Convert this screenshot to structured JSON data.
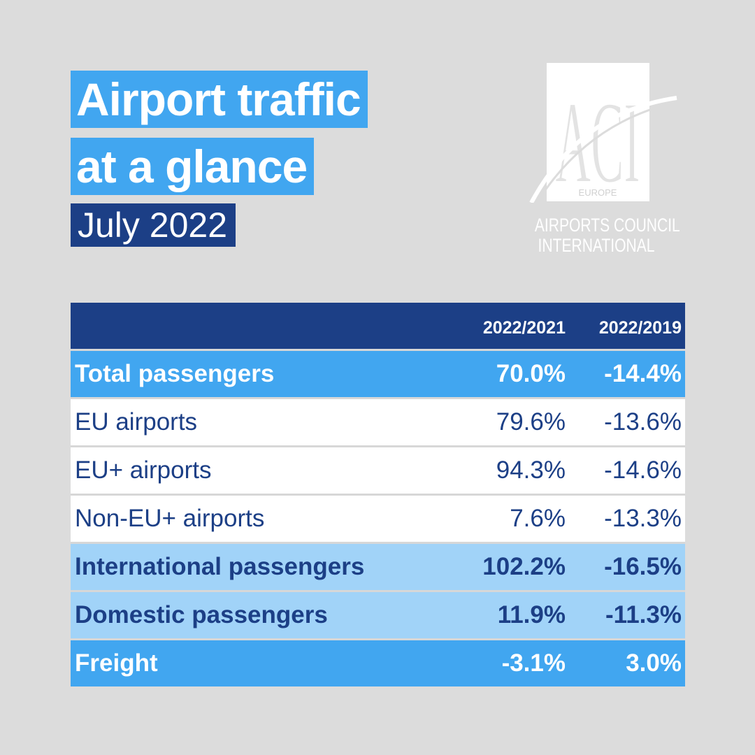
{
  "title": {
    "line1": "Airport traffic",
    "line2": "at a glance",
    "period": "July 2022"
  },
  "logo": {
    "monogram": "ACI",
    "region": "EUROPE",
    "name_line1": "AIRPORTS COUNCIL",
    "name_line2": "INTERNATIONAL"
  },
  "colors": {
    "background": "#dcdcdc",
    "accent_blue": "#41a6f0",
    "navy": "#1c3f86",
    "light_blue": "#a1d3f8"
  },
  "chart_data": {
    "type": "table",
    "columns": [
      "",
      "2022/2021",
      "2022/2019"
    ],
    "rows": [
      {
        "label": "Total passengers",
        "values": [
          "70.0%",
          "-14.4%"
        ],
        "style": "total"
      },
      {
        "label": "EU airports",
        "values": [
          "79.6%",
          "-13.6%"
        ],
        "style": "sub"
      },
      {
        "label": "EU+ airports",
        "values": [
          "94.3%",
          "-14.6%"
        ],
        "style": "sub"
      },
      {
        "label": "Non-EU+ airports",
        "values": [
          "7.6%",
          "-13.3%"
        ],
        "style": "sub"
      },
      {
        "label": "International passengers",
        "values": [
          "102.2%",
          "-16.5%"
        ],
        "style": "light"
      },
      {
        "label": "Domestic passengers",
        "values": [
          "11.9%",
          "-11.3%"
        ],
        "style": "light"
      },
      {
        "label": "Freight",
        "values": [
          "-3.1%",
          "3.0%"
        ],
        "style": "freight"
      }
    ]
  }
}
